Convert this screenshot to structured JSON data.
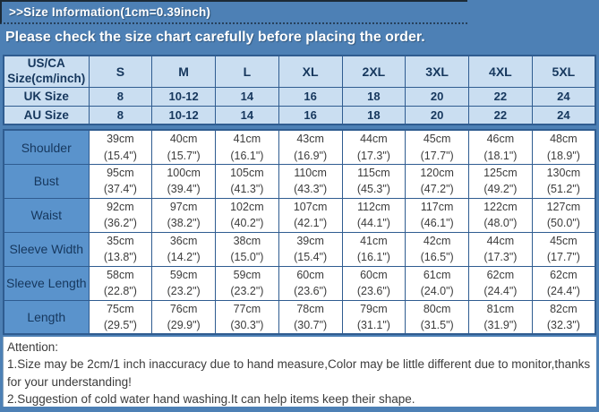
{
  "title_bar": {
    "text": ">>Size Information(1cm=0.39inch)"
  },
  "banner": {
    "text": "Please check the size chart carefully before placing the order."
  },
  "size_table": {
    "corner_header": "US/CA\nSize(cm/inch)",
    "size_columns": [
      "S",
      "M",
      "L",
      "XL",
      "2XL",
      "3XL",
      "4XL",
      "5XL"
    ],
    "size_rows": [
      {
        "label": "UK Size",
        "values": [
          "8",
          "10-12",
          "14",
          "16",
          "18",
          "20",
          "22",
          "24"
        ]
      },
      {
        "label": "AU Size",
        "values": [
          "8",
          "10-12",
          "14",
          "16",
          "18",
          "20",
          "22",
          "24"
        ]
      }
    ],
    "measurement_rows": [
      {
        "label": "Shoulder",
        "values": [
          "39cm\n(15.4\")",
          "40cm\n(15.7\")",
          "41cm\n(16.1\")",
          "43cm\n(16.9\")",
          "44cm\n(17.3\")",
          "45cm\n(17.7\")",
          "46cm\n(18.1\")",
          "48cm\n(18.9\")"
        ]
      },
      {
        "label": "Bust",
        "values": [
          "95cm\n(37.4\")",
          "100cm\n(39.4\")",
          "105cm\n(41.3\")",
          "110cm\n(43.3\")",
          "115cm\n(45.3\")",
          "120cm\n(47.2\")",
          "125cm\n(49.2\")",
          "130cm\n(51.2\")"
        ]
      },
      {
        "label": "Waist",
        "values": [
          "92cm\n(36.2\")",
          "97cm\n(38.2\")",
          "102cm\n(40.2\")",
          "107cm\n(42.1\")",
          "112cm\n(44.1\")",
          "117cm\n(46.1\")",
          "122cm\n(48.0\")",
          "127cm\n(50.0\")"
        ]
      },
      {
        "label": "Sleeve Width",
        "values": [
          "35cm\n(13.8\")",
          "36cm\n(14.2\")",
          "38cm\n(15.0\")",
          "39cm\n(15.4\")",
          "41cm\n(16.1\")",
          "42cm\n(16.5\")",
          "44cm\n(17.3\")",
          "45cm\n(17.7\")"
        ]
      },
      {
        "label": "Sleeve Length",
        "values": [
          "58cm\n(22.8\")",
          "59cm\n(23.2\")",
          "59cm\n(23.2\")",
          "60cm\n(23.6\")",
          "60cm\n(23.6\")",
          "61cm\n(24.0\")",
          "62cm\n(24.4\")",
          "62cm\n(24.4\")"
        ]
      },
      {
        "label": "Length",
        "values": [
          "75cm\n(29.5\")",
          "76cm\n(29.9\")",
          "77cm\n(30.3\")",
          "78cm\n(30.7\")",
          "79cm\n(31.1\")",
          "80cm\n(31.5\")",
          "81cm\n(31.9\")",
          "82cm\n(32.3\")"
        ]
      }
    ]
  },
  "attention": {
    "heading": "Attention:",
    "lines": [
      "1.Size may be 2cm/1 inch inaccuracy due to hand measure,Color may be little different due to monitor,thanks for your understanding!",
      "2.Suggestion of cold water hand washing.It can help items keep their shape."
    ]
  },
  "colors": {
    "page_bg": "#4d80b5",
    "header_bg": "#cadef1",
    "label_bg": "#5a93cc",
    "cell_bg": "#ffffff",
    "table_border": "#2f5c90",
    "navy_text": "#16375d",
    "cell_text": "#3c3c3c",
    "title_text": "#ffffff"
  }
}
